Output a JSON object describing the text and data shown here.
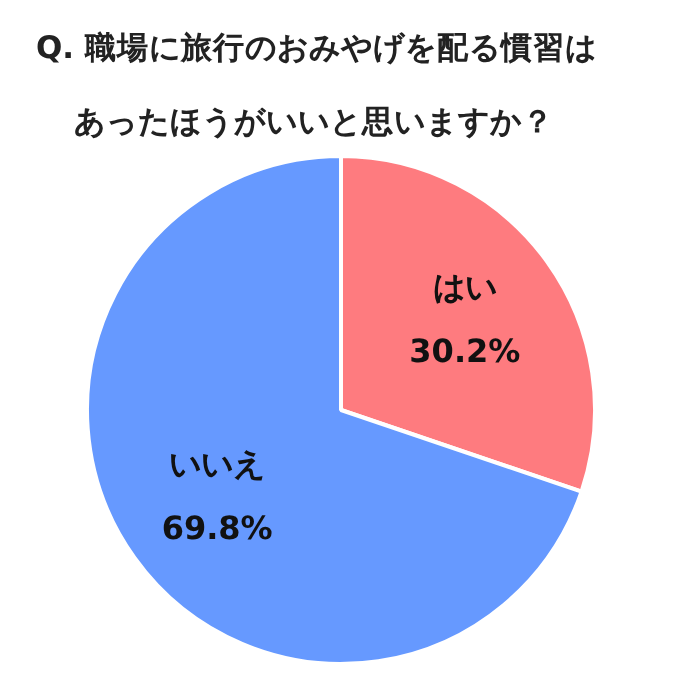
{
  "chart_data": {
    "type": "pie",
    "title": "Q. 職場に旅行のおみやげを配る慣習はあったほうがいいと思いますか？",
    "categories": [
      "はい",
      "いいえ"
    ],
    "values": [
      30.2,
      69.8
    ],
    "value_labels": [
      "30.2%",
      "69.8%"
    ],
    "colors": [
      "#fe7b7f",
      "#6699ff"
    ],
    "legend": false
  }
}
